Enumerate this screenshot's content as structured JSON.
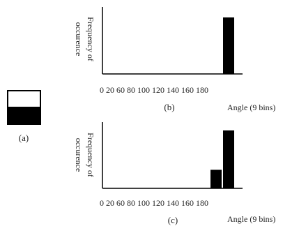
{
  "panel_a": {
    "caption": "(a)",
    "upper_color": "#ffffff",
    "lower_color": "#000000"
  },
  "chart_data": [
    {
      "type": "bar",
      "caption": "(b)",
      "ylabel_line1": "Frequency of",
      "ylabel_line2": "occurence",
      "xlabel": "Angle (9 bins)",
      "ticks": [
        "0",
        "20",
        "60",
        "80",
        "100",
        "120",
        "140",
        "160",
        "180"
      ],
      "tick_text": "0 20 60 80 100 120 140 160 180",
      "categories": [
        160,
        180
      ],
      "values": [
        0,
        1.0
      ],
      "bar_color": "#000000"
    },
    {
      "type": "bar",
      "caption": "(c)",
      "ylabel_line1": "Frequency of",
      "ylabel_line2": "occurence",
      "xlabel": "Angle (9 bins)",
      "ticks": [
        "0",
        "20",
        "60",
        "80",
        "100",
        "120",
        "140",
        "160",
        "180"
      ],
      "tick_text": "0 20 60 80 100 120 140 160 180",
      "categories": [
        160,
        180
      ],
      "values": [
        0.32,
        1.0
      ],
      "bar_color": "#000000"
    }
  ]
}
